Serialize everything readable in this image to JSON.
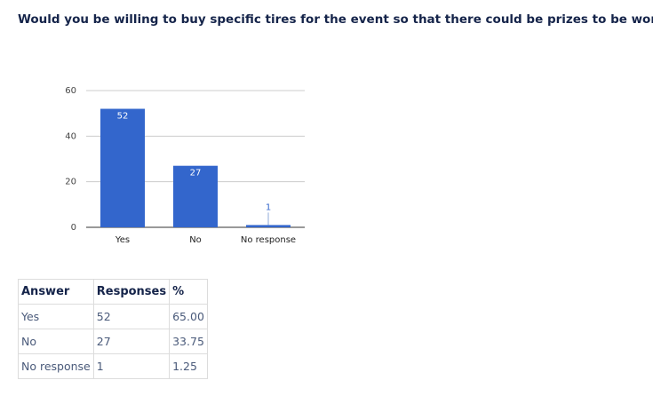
{
  "question": "Would you be willing to buy specific tires for the event so that there could be prizes to be won?",
  "chart_data": {
    "type": "bar",
    "categories": [
      "Yes",
      "No",
      "No response"
    ],
    "values": [
      52,
      27,
      1
    ],
    "color": "#3366cc",
    "ylim": [
      0,
      60
    ],
    "yticks": [
      0,
      20,
      40,
      60
    ],
    "grid": true
  },
  "table": {
    "header": [
      "Answer",
      "Responses",
      "%"
    ],
    "rows": [
      [
        "Yes",
        "52",
        "65.00"
      ],
      [
        "No",
        "27",
        "33.75"
      ],
      [
        "No response",
        "1",
        "1.25"
      ]
    ]
  }
}
